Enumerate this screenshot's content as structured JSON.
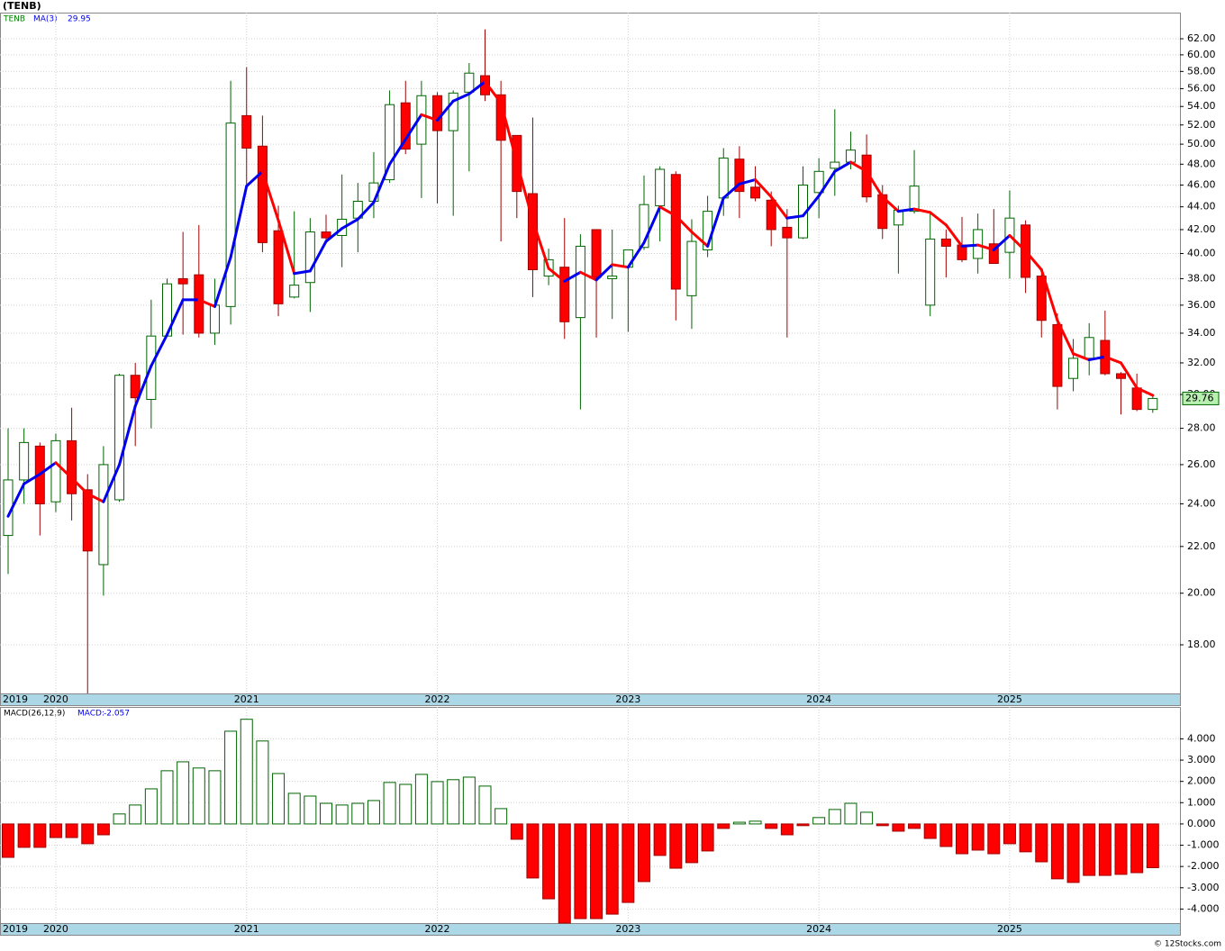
{
  "chart_data": [
    {
      "type": "candlestick",
      "title": "(TENB)",
      "symbol": "TENB",
      "categories": [
        "2019",
        null,
        null,
        "2020",
        null,
        null,
        null,
        null,
        null,
        null,
        null,
        null,
        null,
        null,
        null,
        "2021",
        null,
        null,
        null,
        null,
        null,
        null,
        null,
        null,
        null,
        null,
        null,
        "2022",
        null,
        null,
        null,
        null,
        null,
        null,
        null,
        null,
        null,
        null,
        null,
        "2023",
        null,
        null,
        null,
        null,
        null,
        null,
        null,
        null,
        null,
        null,
        null,
        "2024",
        null,
        null,
        null,
        null,
        null,
        null,
        null,
        null,
        null,
        null,
        null,
        "2025",
        null,
        null,
        null,
        null,
        null,
        null,
        null,
        null,
        null
      ],
      "open": [
        22.5,
        25.2,
        27,
        24.1,
        27.3,
        24.7,
        21.2,
        24.2,
        31.2,
        29.7,
        33.8,
        38,
        38.3,
        34,
        35.9,
        53,
        49.8,
        41.9,
        36.6,
        37.7,
        41.8,
        41.5,
        43,
        44.5,
        46.5,
        54.4,
        50,
        55.2,
        51.4,
        55.6,
        57.5,
        55.3,
        50.9,
        45.2,
        38.2,
        38.9,
        35.1,
        42,
        38,
        38.9,
        40.5,
        44.1,
        47,
        36.7,
        40.3,
        44.8,
        48.5,
        45.8,
        44.6,
        42.2,
        41.3,
        45.3,
        47.6,
        48.2,
        48.9,
        45.1,
        42.4,
        43.6,
        36,
        41.2,
        40.7,
        39.6,
        40.8,
        40.1,
        42.4,
        38.2,
        34.6,
        31,
        32.3,
        33.5,
        31.3,
        30.4,
        29.1
      ],
      "high": [
        28,
        28,
        27.2,
        27.7,
        29.2,
        25.5,
        27,
        31.3,
        32,
        36.4,
        38,
        41.8,
        42.4,
        38,
        56.9,
        58.5,
        53,
        44.1,
        43.6,
        43,
        43.3,
        47,
        46.2,
        49.2,
        55.8,
        56.9,
        56.9,
        55.6,
        55.8,
        59,
        63.2,
        56.9,
        50.9,
        52.8,
        40.4,
        43,
        41.6,
        42,
        42,
        40.3,
        46.9,
        47.8,
        47.3,
        42.9,
        45,
        49.6,
        49.8,
        47.8,
        45.4,
        43.8,
        47.8,
        48.6,
        53.7,
        51.3,
        51,
        46,
        44.1,
        49.4,
        43.4,
        42,
        43.1,
        43.4,
        43.8,
        45.5,
        42.8,
        38.4,
        35.4,
        33.6,
        34.7,
        35.6,
        31.4,
        31.3,
        30
      ],
      "low": [
        20.8,
        24,
        22.5,
        23.6,
        23.2,
        16.3,
        19.9,
        24.1,
        27,
        28,
        33.8,
        33.9,
        33.7,
        33.2,
        34.6,
        45.9,
        40.1,
        35.2,
        36.5,
        35.5,
        41.1,
        38.9,
        40.1,
        43,
        46.2,
        49,
        44.8,
        44.3,
        43.2,
        47.3,
        54.6,
        41,
        43,
        36.6,
        37.5,
        33.6,
        29.1,
        33.7,
        35,
        34.1,
        40.3,
        41,
        34.9,
        34.3,
        39.7,
        43.2,
        43,
        44.5,
        40.6,
        33.7,
        41.2,
        43,
        45,
        47.5,
        44.4,
        41.2,
        38.4,
        43.4,
        35.2,
        38.1,
        39.3,
        38.4,
        39.3,
        38,
        36.9,
        33.7,
        29.1,
        30.2,
        31.2,
        31.2,
        28.8,
        29,
        28.9
      ],
      "close": [
        25.2,
        27.2,
        24,
        27.3,
        24.5,
        21.8,
        26,
        31.2,
        29.8,
        33.8,
        37.6,
        37.6,
        34,
        36,
        52.2,
        49.6,
        40.9,
        36.1,
        37.5,
        41.8,
        41.3,
        42.9,
        44.5,
        46.2,
        54.2,
        49.5,
        55.2,
        51.4,
        55.5,
        57.8,
        55.3,
        50.4,
        45.4,
        38.7,
        39.5,
        34.8,
        40.6,
        38.1,
        38.2,
        40.3,
        44.2,
        47.5,
        37.2,
        41,
        43.6,
        48.6,
        45.4,
        44.8,
        42,
        41.3,
        46,
        47.3,
        48.2,
        49.4,
        44.9,
        42.1,
        43.7,
        45.9,
        41.2,
        40.6,
        39.5,
        42,
        39.2,
        43,
        38.1,
        34.9,
        30.5,
        32.3,
        33.7,
        31.3,
        31,
        29.1,
        29.76
      ],
      "up_color": "#ffffff",
      "up_stroke": "#006400",
      "down_color": "#ff0000",
      "down_stroke": "#a00000",
      "ma": {
        "name": "MA(3)",
        "up_color": "#0000ee",
        "down_color": "#ff0000",
        "values": [
          23.4,
          25,
          25.5,
          26.1,
          25.3,
          24.5,
          24.1,
          26,
          29.3,
          31.8,
          33.9,
          36.4,
          36.4,
          35.9,
          39.7,
          45.9,
          47.3,
          42.8,
          38.4,
          38.6,
          41,
          42.1,
          42.9,
          44.4,
          48,
          50.5,
          53.1,
          52.5,
          54.6,
          55.4,
          56.8,
          54.4,
          48.2,
          42.8,
          38.8,
          37.8,
          38.5,
          37.9,
          39.1,
          38.9,
          40.9,
          44,
          43.2,
          41.8,
          40.6,
          44.8,
          46.1,
          46.5,
          44.9,
          43,
          43.2,
          45,
          47.3,
          48.2,
          47.3,
          44.9,
          43.6,
          43.8,
          43.5,
          42.4,
          40.6,
          40.7,
          40.3,
          41.5,
          40.2,
          38.7,
          34.9,
          32.6,
          32.2,
          32.4,
          32,
          30.4,
          29.95
        ]
      },
      "log_scale": true,
      "grid": true,
      "ylim": [
        16.3,
        65.4
      ],
      "yticks": [
        {
          "value": 18,
          "label": "18.00"
        },
        {
          "value": 20,
          "label": "20.00"
        },
        {
          "value": 22,
          "label": "22.00"
        },
        {
          "value": 24,
          "label": "24.00"
        },
        {
          "value": 26,
          "label": "26.00"
        },
        {
          "value": 28,
          "label": "28.00"
        },
        {
          "value": 30,
          "label": "30.00"
        },
        {
          "value": 32,
          "label": "32.00"
        },
        {
          "value": 34,
          "label": "34.00"
        },
        {
          "value": 36,
          "label": "36.00"
        },
        {
          "value": 38,
          "label": "38.00"
        },
        {
          "value": 40,
          "label": "40.00"
        },
        {
          "value": 42,
          "label": "42.00"
        },
        {
          "value": 44,
          "label": "44.00"
        },
        {
          "value": 46,
          "label": "46.00"
        },
        {
          "value": 48,
          "label": "48.00"
        },
        {
          "value": 50,
          "label": "50.00"
        },
        {
          "value": 52,
          "label": "52.00"
        },
        {
          "value": 54,
          "label": "54.00"
        },
        {
          "value": 56,
          "label": "56.00"
        },
        {
          "value": 58,
          "label": "58.00"
        },
        {
          "value": 60,
          "label": "60.00"
        },
        {
          "value": 62,
          "label": "62.00"
        }
      ]
    },
    {
      "type": "bar",
      "name": "MACD(26,12,9)",
      "value_label": "MACD:",
      "categories": [
        "2019",
        null,
        null,
        "2020",
        null,
        null,
        null,
        null,
        null,
        null,
        null,
        null,
        null,
        null,
        null,
        "2021",
        null,
        null,
        null,
        null,
        null,
        null,
        null,
        null,
        null,
        null,
        null,
        "2022",
        null,
        null,
        null,
        null,
        null,
        null,
        null,
        null,
        null,
        null,
        null,
        "2023",
        null,
        null,
        null,
        null,
        null,
        null,
        null,
        null,
        null,
        null,
        null,
        "2024",
        null,
        null,
        null,
        null,
        null,
        null,
        null,
        null,
        null,
        null,
        null,
        "2025",
        null,
        null,
        null,
        null,
        null,
        null,
        null,
        null,
        null
      ],
      "values": [
        -1.57,
        -1.1,
        -1.1,
        -0.64,
        -0.64,
        -0.93,
        -0.51,
        0.47,
        0.89,
        1.65,
        2.5,
        2.92,
        2.63,
        2.5,
        4.36,
        4.92,
        3.9,
        2.37,
        1.44,
        1.31,
        0.97,
        0.89,
        0.97,
        1.1,
        1.95,
        1.86,
        2.33,
        1.99,
        2.08,
        2.2,
        1.78,
        0.72,
        -0.72,
        -2.54,
        -3.52,
        -4.66,
        -4.45,
        -4.45,
        -4.24,
        -3.69,
        -2.71,
        -1.48,
        -2.08,
        -1.82,
        -1.27,
        -0.21,
        0.08,
        0.13,
        -0.21,
        -0.51,
        -0.08,
        0.3,
        0.68,
        0.97,
        0.55,
        -0.08,
        -0.34,
        -0.21,
        -0.68,
        -1.06,
        -1.4,
        -1.23,
        -1.4,
        -0.93,
        -1.31,
        -1.78,
        -2.58,
        -2.75,
        -2.42,
        -2.42,
        -2.37,
        -2.29,
        -2.057
      ],
      "up_color": "#ffffff",
      "up_stroke": "#006400",
      "down_color": "#ff0000",
      "down_stroke": "#a00000",
      "grid": true,
      "ylim": [
        -4.66,
        5.5
      ],
      "yticks": [
        {
          "value": -4,
          "label": "-4.000"
        },
        {
          "value": -3,
          "label": "-3.000"
        },
        {
          "value": -2,
          "label": "-2.000"
        },
        {
          "value": -1,
          "label": "-1.000"
        },
        {
          "value": 0,
          "label": "0.000"
        },
        {
          "value": 1,
          "label": "1.000"
        },
        {
          "value": 2,
          "label": "2.000"
        },
        {
          "value": 3,
          "label": "3.000"
        },
        {
          "value": 4,
          "label": "4.000"
        }
      ]
    }
  ],
  "footer": "© 12Stocks.com"
}
